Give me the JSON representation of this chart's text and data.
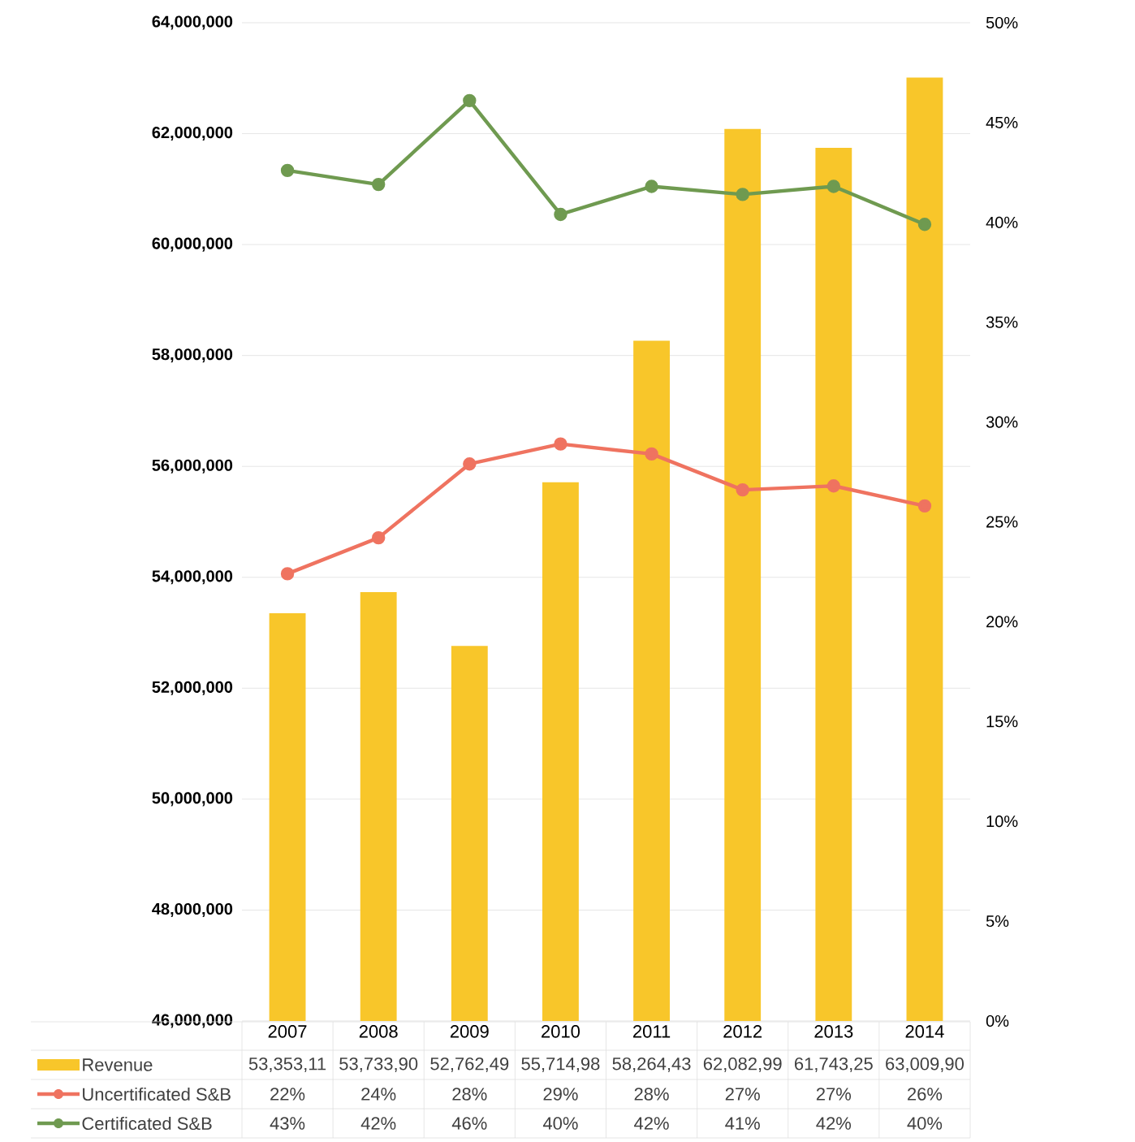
{
  "chart_data": {
    "type": "bar",
    "categories": [
      "2007",
      "2008",
      "2009",
      "2010",
      "2011",
      "2012",
      "2013",
      "2014"
    ],
    "series": [
      {
        "name": "Revenue",
        "color": "#f8c62a",
        "values": [
          53353110,
          53733900,
          52762490,
          55714980,
          58264430,
          62082990,
          61743250,
          63009900
        ],
        "value_labels": [
          "53,353,11",
          "53,733,90",
          "52,762,49",
          "55,714,98",
          "58,264,43",
          "62,082,99",
          "61,743,25",
          "63,009,90"
        ]
      },
      {
        "name": "Uncertificated S&B",
        "type": "line",
        "axis": "y2",
        "color": "#ef7360",
        "values": [
          22.4,
          24.2,
          27.9,
          28.9,
          28.4,
          26.6,
          26.8,
          25.8
        ],
        "value_labels": [
          "22%",
          "24%",
          "28%",
          "29%",
          "28%",
          "27%",
          "27%",
          "26%"
        ]
      },
      {
        "name": "Certificated S&B",
        "type": "line",
        "axis": "y2",
        "color": "#6f9a50",
        "values": [
          42.6,
          41.9,
          46.1,
          40.4,
          41.8,
          41.4,
          41.8,
          39.9
        ],
        "value_labels": [
          "43%",
          "42%",
          "46%",
          "40%",
          "42%",
          "41%",
          "42%",
          "40%"
        ]
      }
    ],
    "ylim": [
      46000000,
      64000000
    ],
    "yticks": [
      {
        "value": 46000000,
        "label": "46,000,000"
      },
      {
        "value": 48000000,
        "label": "48,000,000"
      },
      {
        "value": 50000000,
        "label": "50,000,000"
      },
      {
        "value": 52000000,
        "label": "52,000,000"
      },
      {
        "value": 54000000,
        "label": "54,000,000"
      },
      {
        "value": 56000000,
        "label": "56,000,000"
      },
      {
        "value": 58000000,
        "label": "58,000,000"
      },
      {
        "value": 60000000,
        "label": "60,000,000"
      },
      {
        "value": 62000000,
        "label": "62,000,000"
      },
      {
        "value": 64000000,
        "label": "64,000,000"
      }
    ],
    "y2lim": [
      0,
      50
    ],
    "y2ticks": [
      {
        "value": 0,
        "label": "0%"
      },
      {
        "value": 5,
        "label": "5%"
      },
      {
        "value": 10,
        "label": "10%"
      },
      {
        "value": 15,
        "label": "15%"
      },
      {
        "value": 20,
        "label": "20%"
      },
      {
        "value": 25,
        "label": "25%"
      },
      {
        "value": 30,
        "label": "30%"
      },
      {
        "value": 35,
        "label": "35%"
      },
      {
        "value": 40,
        "label": "40%"
      },
      {
        "value": 45,
        "label": "45%"
      },
      {
        "value": 50,
        "label": "50%"
      }
    ],
    "grid": "y",
    "marker": "circle",
    "legend": "bottom"
  }
}
